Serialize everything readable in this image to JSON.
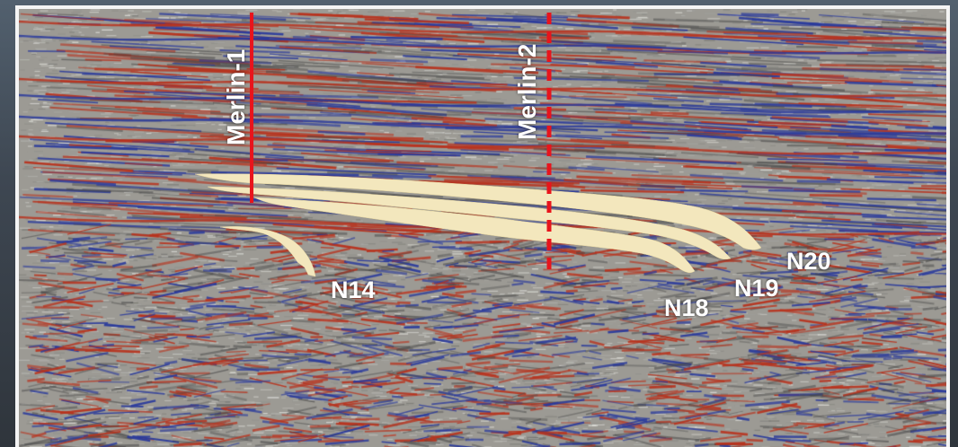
{
  "wells": [
    {
      "id": "merlin-1",
      "label": "Merlin-1",
      "style": "solid",
      "color": "#e8141c"
    },
    {
      "id": "merlin-2",
      "label": "Merlin-2",
      "style": "dashed",
      "color": "#e8141c"
    }
  ],
  "horizons": [
    {
      "id": "n14",
      "label": "N14"
    },
    {
      "id": "n18",
      "label": "N18"
    },
    {
      "id": "n19",
      "label": "N19"
    },
    {
      "id": "n20",
      "label": "N20"
    }
  ],
  "colors": {
    "frame": "#f4f4f4",
    "seismic_base": "#9a9892",
    "reflector_red": "#b8331e",
    "reflector_blue": "#2a3a9c",
    "horizon_fill": "#f3e7bd"
  }
}
